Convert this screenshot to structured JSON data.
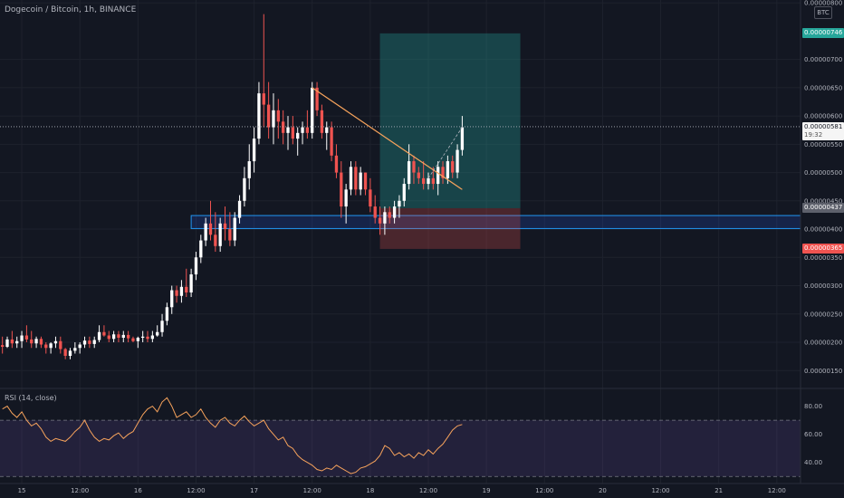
{
  "header": {
    "title": "Dogecoin / Bitcoin, 1h, BINANCE",
    "currency_badge": "BTC"
  },
  "colors": {
    "background": "#131722",
    "up": "#26a69a",
    "down": "#ef5350",
    "trendline": "#f7a35c",
    "zone": "#2962ff",
    "rsi": "#f7a35c",
    "rsi_band": "#7e57c2",
    "target": "#26a69a",
    "stop": "#ef5350"
  },
  "price_tags": {
    "target": "0.00000746",
    "current": "0.00000581",
    "countdown": "19:32",
    "entry": "0.00000437",
    "stop": "0.00000365"
  },
  "rsi": {
    "label": "RSI (14, close)"
  },
  "chart_data": [
    {
      "type": "candlestick",
      "title": "Dogecoin / Bitcoin, 1h, BINANCE",
      "y_tick_labels": [
        "0.00000800",
        "0.00000700",
        "0.00000650",
        "0.00000600",
        "0.00000550",
        "0.00000500",
        "0.00000450",
        "0.00000400",
        "0.00000350",
        "0.00000300",
        "0.00000250",
        "0.00000200",
        "0.00000150"
      ],
      "y_ticks": [
        8e-06,
        7e-06,
        6.5e-06,
        6e-06,
        5.5e-06,
        5e-06,
        4.5e-06,
        4e-06,
        3.5e-06,
        3e-06,
        2.5e-06,
        2e-06,
        1.5e-06
      ],
      "x_tick_labels": [
        "15",
        "12:00",
        "16",
        "12:00",
        "17",
        "12:00",
        "18",
        "12:00",
        "19",
        "12:00",
        "20",
        "12:00",
        "21",
        "12:00"
      ],
      "x_tick_positions": [
        0,
        12,
        24,
        36,
        48,
        60,
        72,
        84,
        96,
        108,
        120,
        132,
        144,
        156
      ],
      "ylim": [
        1.2e-06,
        8.05e-06
      ],
      "x_start": -4.5,
      "x_end": 160.9,
      "grid": true,
      "candles": [
        {
          "x": -4,
          "o": 1.95e-06,
          "h": 2.1e-06,
          "l": 1.8e-06,
          "c": 1.92e-06
        },
        {
          "x": -3,
          "o": 1.92e-06,
          "h": 2.1e-06,
          "l": 1.9e-06,
          "c": 2.05e-06
        },
        {
          "x": -2,
          "o": 2.05e-06,
          "h": 2.2e-06,
          "l": 1.9e-06,
          "c": 1.98e-06
        },
        {
          "x": -1,
          "o": 1.98e-06,
          "h": 2.1e-06,
          "l": 1.9e-06,
          "c": 2.02e-06
        },
        {
          "x": 0,
          "o": 2.02e-06,
          "h": 2.2e-06,
          "l": 1.9e-06,
          "c": 2.12e-06
        },
        {
          "x": 1,
          "o": 2.12e-06,
          "h": 2.3e-06,
          "l": 2e-06,
          "c": 2.05e-06
        },
        {
          "x": 2,
          "o": 2.05e-06,
          "h": 2.2e-06,
          "l": 1.9e-06,
          "c": 1.98e-06
        },
        {
          "x": 3,
          "o": 1.98e-06,
          "h": 2.1e-06,
          "l": 1.9e-06,
          "c": 2.06e-06
        },
        {
          "x": 4,
          "o": 2.06e-06,
          "h": 2.1e-06,
          "l": 1.9e-06,
          "c": 1.96e-06
        },
        {
          "x": 5,
          "o": 1.96e-06,
          "h": 2e-06,
          "l": 1.8e-06,
          "c": 1.9e-06
        },
        {
          "x": 6,
          "o": 1.9e-06,
          "h": 2e-06,
          "l": 1.8e-06,
          "c": 1.98e-06
        },
        {
          "x": 7,
          "o": 1.98e-06,
          "h": 2.1e-06,
          "l": 1.9e-06,
          "c": 2.02e-06
        },
        {
          "x": 8,
          "o": 2.02e-06,
          "h": 2.1e-06,
          "l": 1.8e-06,
          "c": 1.88e-06
        },
        {
          "x": 9,
          "o": 1.88e-06,
          "h": 1.9e-06,
          "l": 1.7e-06,
          "c": 1.76e-06
        },
        {
          "x": 10,
          "o": 1.76e-06,
          "h": 1.9e-06,
          "l": 1.7e-06,
          "c": 1.85e-06
        },
        {
          "x": 11,
          "o": 1.85e-06,
          "h": 2e-06,
          "l": 1.8e-06,
          "c": 1.9e-06
        },
        {
          "x": 12,
          "o": 1.9e-06,
          "h": 2e-06,
          "l": 1.8e-06,
          "c": 1.96e-06
        },
        {
          "x": 13,
          "o": 1.96e-06,
          "h": 2.1e-06,
          "l": 1.9e-06,
          "c": 2.03e-06
        },
        {
          "x": 14,
          "o": 2.03e-06,
          "h": 2.1e-06,
          "l": 1.9e-06,
          "c": 1.97e-06
        },
        {
          "x": 15,
          "o": 1.97e-06,
          "h": 2.1e-06,
          "l": 1.9e-06,
          "c": 2.04e-06
        },
        {
          "x": 16,
          "o": 2.04e-06,
          "h": 2.3e-06,
          "l": 2e-06,
          "c": 2.18e-06
        },
        {
          "x": 17,
          "o": 2.18e-06,
          "h": 2.3e-06,
          "l": 2.1e-06,
          "c": 2.12e-06
        },
        {
          "x": 18,
          "o": 2.12e-06,
          "h": 2.2e-06,
          "l": 2e-06,
          "c": 2.06e-06
        },
        {
          "x": 19,
          "o": 2.06e-06,
          "h": 2.2e-06,
          "l": 2e-06,
          "c": 2.14e-06
        },
        {
          "x": 20,
          "o": 2.14e-06,
          "h": 2.2e-06,
          "l": 2e-06,
          "c": 2.08e-06
        },
        {
          "x": 21,
          "o": 2.08e-06,
          "h": 2.2e-06,
          "l": 2e-06,
          "c": 2.13e-06
        },
        {
          "x": 22,
          "o": 2.13e-06,
          "h": 2.2e-06,
          "l": 2e-06,
          "c": 2.07e-06
        },
        {
          "x": 23,
          "o": 2.07e-06,
          "h": 2.1e-06,
          "l": 2e-06,
          "c": 2.02e-06
        },
        {
          "x": 24,
          "o": 2.02e-06,
          "h": 2.1e-06,
          "l": 1.9e-06,
          "c": 2.08e-06
        },
        {
          "x": 25,
          "o": 2.08e-06,
          "h": 2.2e-06,
          "l": 2e-06,
          "c": 2.1e-06
        },
        {
          "x": 26,
          "o": 2.1e-06,
          "h": 2.2e-06,
          "l": 2e-06,
          "c": 2.06e-06
        },
        {
          "x": 27,
          "o": 2.06e-06,
          "h": 2.2e-06,
          "l": 2e-06,
          "c": 2.12e-06
        },
        {
          "x": 28,
          "o": 2.12e-06,
          "h": 2.3e-06,
          "l": 2.1e-06,
          "c": 2.18e-06
        },
        {
          "x": 29,
          "o": 2.18e-06,
          "h": 2.5e-06,
          "l": 2.1e-06,
          "c": 2.38e-06
        },
        {
          "x": 30,
          "o": 2.38e-06,
          "h": 2.7e-06,
          "l": 2.3e-06,
          "c": 2.62e-06
        },
        {
          "x": 31,
          "o": 2.62e-06,
          "h": 3e-06,
          "l": 2.5e-06,
          "c": 2.92e-06
        },
        {
          "x": 32,
          "o": 2.92e-06,
          "h": 3e-06,
          "l": 2.7e-06,
          "c": 2.82e-06
        },
        {
          "x": 33,
          "o": 2.82e-06,
          "h": 3.1e-06,
          "l": 2.7e-06,
          "c": 2.98e-06
        },
        {
          "x": 34,
          "o": 2.98e-06,
          "h": 3.3e-06,
          "l": 2.8e-06,
          "c": 2.88e-06
        },
        {
          "x": 35,
          "o": 2.88e-06,
          "h": 3.3e-06,
          "l": 2.8e-06,
          "c": 3.2e-06
        },
        {
          "x": 36,
          "o": 3.2e-06,
          "h": 3.6e-06,
          "l": 3.1e-06,
          "c": 3.5e-06
        },
        {
          "x": 37,
          "o": 3.5e-06,
          "h": 3.9e-06,
          "l": 3.4e-06,
          "c": 3.8e-06
        },
        {
          "x": 38,
          "o": 3.8e-06,
          "h": 4.2e-06,
          "l": 3.7e-06,
          "c": 4.1e-06
        },
        {
          "x": 39,
          "o": 4.1e-06,
          "h": 4.5e-06,
          "l": 3.8e-06,
          "c": 3.9e-06
        },
        {
          "x": 40,
          "o": 3.9e-06,
          "h": 4.3e-06,
          "l": 3.6e-06,
          "c": 3.7e-06
        },
        {
          "x": 41,
          "o": 3.7e-06,
          "h": 4.2e-06,
          "l": 3.6e-06,
          "c": 4.1e-06
        },
        {
          "x": 42,
          "o": 4.1e-06,
          "h": 4.4e-06,
          "l": 3.8e-06,
          "c": 4e-06
        },
        {
          "x": 43,
          "o": 4e-06,
          "h": 4.3e-06,
          "l": 3.7e-06,
          "c": 3.8e-06
        },
        {
          "x": 44,
          "o": 3.8e-06,
          "h": 4.3e-06,
          "l": 3.7e-06,
          "c": 4.2e-06
        },
        {
          "x": 45,
          "o": 4.2e-06,
          "h": 4.6e-06,
          "l": 4.1e-06,
          "c": 4.5e-06
        },
        {
          "x": 46,
          "o": 4.5e-06,
          "h": 5.1e-06,
          "l": 4.4e-06,
          "c": 4.9e-06
        },
        {
          "x": 47,
          "o": 4.9e-06,
          "h": 5.5e-06,
          "l": 4.7e-06,
          "c": 5.2e-06
        },
        {
          "x": 48,
          "o": 5.2e-06,
          "h": 5.8e-06,
          "l": 5e-06,
          "c": 5.6e-06
        },
        {
          "x": 49,
          "o": 5.6e-06,
          "h": 6.6e-06,
          "l": 5.5e-06,
          "c": 6.4e-06
        },
        {
          "x": 50,
          "o": 6.4e-06,
          "h": 7.8e-06,
          "l": 5.8e-06,
          "c": 6.2e-06
        },
        {
          "x": 51,
          "o": 6.2e-06,
          "h": 6.6e-06,
          "l": 5.6e-06,
          "c": 5.8e-06
        },
        {
          "x": 52,
          "o": 5.8e-06,
          "h": 6.4e-06,
          "l": 5.5e-06,
          "c": 6.1e-06
        },
        {
          "x": 53,
          "o": 6.1e-06,
          "h": 6.3e-06,
          "l": 5.6e-06,
          "c": 5.9e-06
        },
        {
          "x": 54,
          "o": 5.9e-06,
          "h": 6.1e-06,
          "l": 5.5e-06,
          "c": 5.7e-06
        },
        {
          "x": 55,
          "o": 5.7e-06,
          "h": 6e-06,
          "l": 5.4e-06,
          "c": 5.8e-06
        },
        {
          "x": 56,
          "o": 5.8e-06,
          "h": 6e-06,
          "l": 5.5e-06,
          "c": 5.6e-06
        },
        {
          "x": 57,
          "o": 5.6e-06,
          "h": 5.8e-06,
          "l": 5.3e-06,
          "c": 5.7e-06
        },
        {
          "x": 58,
          "o": 5.7e-06,
          "h": 5.9e-06,
          "l": 5.5e-06,
          "c": 5.8e-06
        },
        {
          "x": 59,
          "o": 5.8e-06,
          "h": 6.1e-06,
          "l": 5.6e-06,
          "c": 5.7e-06
        },
        {
          "x": 60,
          "o": 5.7e-06,
          "h": 6.6e-06,
          "l": 5.6e-06,
          "c": 6.5e-06
        },
        {
          "x": 61,
          "o": 6.5e-06,
          "h": 6.6e-06,
          "l": 6e-06,
          "c": 6.1e-06
        },
        {
          "x": 62,
          "o": 6.1e-06,
          "h": 6.2e-06,
          "l": 5.6e-06,
          "c": 5.7e-06
        },
        {
          "x": 63,
          "o": 5.7e-06,
          "h": 5.9e-06,
          "l": 5.4e-06,
          "c": 5.8e-06
        },
        {
          "x": 64,
          "o": 5.8e-06,
          "h": 5.9e-06,
          "l": 5.2e-06,
          "c": 5.3e-06
        },
        {
          "x": 65,
          "o": 5.3e-06,
          "h": 5.5e-06,
          "l": 4.9e-06,
          "c": 5e-06
        },
        {
          "x": 66,
          "o": 5e-06,
          "h": 5.2e-06,
          "l": 4.2e-06,
          "c": 4.4e-06
        },
        {
          "x": 67,
          "o": 4.4e-06,
          "h": 4.8e-06,
          "l": 4.1e-06,
          "c": 4.7e-06
        },
        {
          "x": 68,
          "o": 4.7e-06,
          "h": 5.2e-06,
          "l": 4.6e-06,
          "c": 5.1e-06
        },
        {
          "x": 69,
          "o": 5.1e-06,
          "h": 5.2e-06,
          "l": 4.6e-06,
          "c": 4.7e-06
        },
        {
          "x": 70,
          "o": 4.7e-06,
          "h": 5.1e-06,
          "l": 4.6e-06,
          "c": 5e-06
        },
        {
          "x": 71,
          "o": 5e-06,
          "h": 5e-06,
          "l": 4.6e-06,
          "c": 4.7e-06
        },
        {
          "x": 72,
          "o": 4.7e-06,
          "h": 4.9e-06,
          "l": 4.3e-06,
          "c": 4.4e-06
        },
        {
          "x": 73,
          "o": 4.4e-06,
          "h": 4.6e-06,
          "l": 4.1e-06,
          "c": 4.2e-06
        },
        {
          "x": 74,
          "o": 4.2e-06,
          "h": 4.4e-06,
          "l": 3.9e-06,
          "c": 4.1e-06
        },
        {
          "x": 75,
          "o": 4.1e-06,
          "h": 4.4e-06,
          "l": 3.9e-06,
          "c": 4.3e-06
        },
        {
          "x": 76,
          "o": 4.3e-06,
          "h": 4.4e-06,
          "l": 4.1e-06,
          "c": 4.2e-06
        },
        {
          "x": 77,
          "o": 4.2e-06,
          "h": 4.5e-06,
          "l": 4.1e-06,
          "c": 4.4e-06
        },
        {
          "x": 78,
          "o": 4.4e-06,
          "h": 4.6e-06,
          "l": 4.2e-06,
          "c": 4.5e-06
        },
        {
          "x": 79,
          "o": 4.5e-06,
          "h": 4.9e-06,
          "l": 4.4e-06,
          "c": 4.8e-06
        },
        {
          "x": 80,
          "o": 4.8e-06,
          "h": 5.5e-06,
          "l": 4.7e-06,
          "c": 5.2e-06
        },
        {
          "x": 81,
          "o": 5.2e-06,
          "h": 5.3e-06,
          "l": 4.8e-06,
          "c": 5e-06
        },
        {
          "x": 82,
          "o": 5e-06,
          "h": 5.1e-06,
          "l": 4.8e-06,
          "c": 4.9e-06
        },
        {
          "x": 83,
          "o": 4.9e-06,
          "h": 5.2e-06,
          "l": 4.7e-06,
          "c": 4.8e-06
        },
        {
          "x": 84,
          "o": 4.8e-06,
          "h": 5e-06,
          "l": 4.7e-06,
          "c": 4.9e-06
        },
        {
          "x": 85,
          "o": 4.9e-06,
          "h": 5.1e-06,
          "l": 4.7e-06,
          "c": 4.8e-06
        },
        {
          "x": 86,
          "o": 4.8e-06,
          "h": 5.2e-06,
          "l": 4.6e-06,
          "c": 5.1e-06
        },
        {
          "x": 87,
          "o": 5.1e-06,
          "h": 5.2e-06,
          "l": 4.8e-06,
          "c": 4.9e-06
        },
        {
          "x": 88,
          "o": 4.9e-06,
          "h": 5.3e-06,
          "l": 4.8e-06,
          "c": 5.2e-06
        },
        {
          "x": 89,
          "o": 5.2e-06,
          "h": 5.3e-06,
          "l": 4.9e-06,
          "c": 5e-06
        },
        {
          "x": 90,
          "o": 5e-06,
          "h": 5.5e-06,
          "l": 4.9e-06,
          "c": 5.4e-06
        },
        {
          "x": 91,
          "o": 5.4e-06,
          "h": 6e-06,
          "l": 5.3e-06,
          "c": 5.8e-06
        }
      ],
      "trendline": [
        {
          "x": 60,
          "y": 6.5e-06
        },
        {
          "x": 91,
          "y": 4.7e-06
        }
      ],
      "projection": [
        {
          "x": 84,
          "y": 4.9e-06
        },
        {
          "x": 91,
          "y": 5.8e-06
        }
      ],
      "support_zone": {
        "y_low": 4.01e-06,
        "y_high": 4.24e-06,
        "x_from": 35,
        "x_to": 160.9
      },
      "position": {
        "x_from": 74,
        "x_to": 103,
        "target": 7.46e-06,
        "entry": 4.37e-06,
        "stop": 3.65e-06
      },
      "current_price": 5.81e-06
    },
    {
      "type": "line",
      "title": "RSI (14, close)",
      "y_tick_labels": [
        "80.00",
        "60.00",
        "40.00"
      ],
      "y_ticks": [
        80,
        60,
        40
      ],
      "ylim": [
        25,
        92
      ],
      "band": [
        30,
        70
      ],
      "x": [
        -4,
        -3,
        -2,
        -1,
        0,
        1,
        2,
        3,
        4,
        5,
        6,
        7,
        8,
        9,
        10,
        11,
        12,
        13,
        14,
        15,
        16,
        17,
        18,
        19,
        20,
        21,
        22,
        23,
        24,
        25,
        26,
        27,
        28,
        29,
        30,
        31,
        32,
        33,
        34,
        35,
        36,
        37,
        38,
        39,
        40,
        41,
        42,
        43,
        44,
        45,
        46,
        47,
        48,
        49,
        50,
        51,
        52,
        53,
        54,
        55,
        56,
        57,
        58,
        59,
        60,
        61,
        62,
        63,
        64,
        65,
        66,
        67,
        68,
        69,
        70,
        71,
        72,
        73,
        74,
        75,
        76,
        77,
        78,
        79,
        80,
        81,
        82,
        83,
        84,
        85,
        86,
        87,
        88,
        89,
        90,
        91
      ],
      "values": [
        78,
        80,
        75,
        72,
        76,
        70,
        66,
        68,
        64,
        58,
        55,
        57,
        56,
        55,
        58,
        62,
        65,
        70,
        63,
        58,
        55,
        57,
        56,
        59,
        61,
        57,
        60,
        62,
        68,
        74,
        78,
        80,
        76,
        83,
        86,
        80,
        72,
        74,
        76,
        72,
        74,
        78,
        72,
        68,
        65,
        70,
        72,
        68,
        66,
        70,
        73,
        69,
        66,
        68,
        70,
        64,
        60,
        56,
        58,
        52,
        50,
        45,
        42,
        40,
        38,
        35,
        34,
        36,
        35,
        38,
        36,
        34,
        32,
        33,
        36,
        37,
        39,
        41,
        45,
        52,
        50,
        45,
        47,
        44,
        46,
        43,
        47,
        45,
        49,
        46,
        50,
        53,
        58,
        63,
        66,
        67
      ]
    }
  ]
}
